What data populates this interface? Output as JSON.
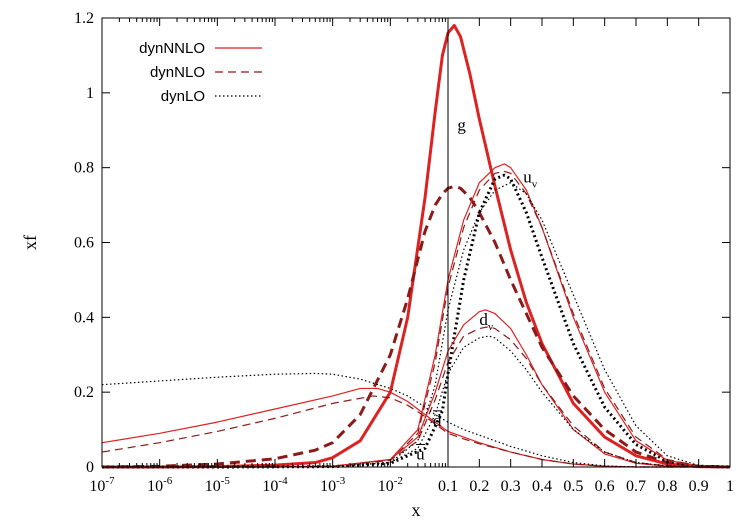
{
  "chart_data": {
    "type": "line",
    "title": "",
    "xlabel": "x",
    "ylabel": "xf",
    "xscale": "log below x=0.1, linear above x=0.1 (split axis)",
    "xlim": [
      1e-07,
      1
    ],
    "ylim": [
      0,
      1.2
    ],
    "grid": false,
    "legend_position": "top-left",
    "x_tick_labels": [
      {
        "v": 1e-07,
        "base": "10",
        "exp": "-7"
      },
      {
        "v": 1e-06,
        "base": "10",
        "exp": "-6"
      },
      {
        "v": 1e-05,
        "base": "10",
        "exp": "-5"
      },
      {
        "v": 0.0001,
        "base": "10",
        "exp": "-4"
      },
      {
        "v": 0.001,
        "base": "10",
        "exp": "-3"
      },
      {
        "v": 0.01,
        "base": "10",
        "exp": "-2"
      },
      {
        "v": 0.1,
        "base": "0.1",
        "exp": ""
      },
      {
        "v": 0.2,
        "base": "0.2",
        "exp": ""
      },
      {
        "v": 0.3,
        "base": "0.3",
        "exp": ""
      },
      {
        "v": 0.4,
        "base": "0.4",
        "exp": ""
      },
      {
        "v": 0.5,
        "base": "0.5",
        "exp": ""
      },
      {
        "v": 0.6,
        "base": "0.6",
        "exp": ""
      },
      {
        "v": 0.7,
        "base": "0.7",
        "exp": ""
      },
      {
        "v": 0.8,
        "base": "0.8",
        "exp": ""
      },
      {
        "v": 0.9,
        "base": "0.9",
        "exp": ""
      },
      {
        "v": 1,
        "base": "1",
        "exp": ""
      }
    ],
    "y_ticks": [
      0,
      0.2,
      0.4,
      0.6,
      0.8,
      1,
      1.2
    ],
    "y_tick_labels": [
      "0",
      "0.2",
      "0.4",
      "0.6",
      "0.8",
      "1",
      "1.2"
    ],
    "legend": [
      {
        "label": "dynNNLO",
        "style": "solid",
        "color": "#dd2222"
      },
      {
        "label": "dynNLO",
        "style": "dashed",
        "color": "#8b1a1a"
      },
      {
        "label": "dynLO",
        "style": "dotted",
        "color": "#000000"
      }
    ],
    "curve_labels": [
      {
        "main": "g",
        "sub": "",
        "bar": false,
        "x": 0.13,
        "y": 0.9
      },
      {
        "main": "u",
        "sub": "v",
        "bar": false,
        "x": 0.34,
        "y": 0.76
      },
      {
        "main": "d",
        "sub": "v",
        "bar": false,
        "x": 0.2,
        "y": 0.38
      },
      {
        "main": "d",
        "sub": "",
        "bar": true,
        "x": 0.055,
        "y": 0.11
      },
      {
        "main": "u",
        "sub": "",
        "bar": true,
        "x": 0.028,
        "y": 0.02
      }
    ],
    "series": [
      {
        "name": "g",
        "order": "NNLO",
        "style": "solid",
        "width": "thick",
        "color": "#dd2222",
        "x": [
          1e-07,
          1e-06,
          1e-05,
          0.0001,
          0.0005,
          0.001,
          0.003,
          0.01,
          0.02,
          0.04,
          0.06,
          0.08,
          0.1,
          0.12,
          0.14,
          0.17,
          0.2,
          0.25,
          0.3,
          0.35,
          0.4,
          0.5,
          0.6,
          0.7,
          0.8,
          0.9,
          1
        ],
        "y": [
          0,
          0,
          0.001,
          0.005,
          0.012,
          0.025,
          0.07,
          0.2,
          0.4,
          0.72,
          0.95,
          1.1,
          1.16,
          1.18,
          1.15,
          1.05,
          0.93,
          0.75,
          0.58,
          0.44,
          0.33,
          0.17,
          0.08,
          0.03,
          0.008,
          0.001,
          0
        ]
      },
      {
        "name": "g",
        "order": "NLO",
        "style": "dashed",
        "width": "thick",
        "color": "#8b1a1a",
        "x": [
          1e-07,
          1e-06,
          1e-05,
          0.0001,
          0.0005,
          0.001,
          0.003,
          0.01,
          0.02,
          0.04,
          0.06,
          0.08,
          0.1,
          0.12,
          0.14,
          0.17,
          0.2,
          0.25,
          0.3,
          0.35,
          0.4,
          0.5,
          0.6,
          0.7,
          0.8,
          0.9,
          1
        ],
        "y": [
          0,
          0.002,
          0.008,
          0.022,
          0.045,
          0.065,
          0.14,
          0.3,
          0.45,
          0.63,
          0.7,
          0.73,
          0.745,
          0.75,
          0.745,
          0.72,
          0.68,
          0.6,
          0.5,
          0.41,
          0.32,
          0.19,
          0.1,
          0.04,
          0.012,
          0.002,
          0
        ]
      },
      {
        "name": "g",
        "order": "LO",
        "style": "dotted",
        "width": "thick",
        "color": "#000000",
        "x": [
          1e-07,
          1e-05,
          0.001,
          0.01,
          0.04,
          0.08,
          0.1,
          0.15,
          0.2,
          0.25,
          0.28,
          0.3,
          0.35,
          0.4,
          0.5,
          0.6,
          0.7,
          0.8,
          0.9,
          1
        ],
        "y": [
          0,
          0,
          0.001,
          0.01,
          0.05,
          0.15,
          0.25,
          0.5,
          0.68,
          0.77,
          0.78,
          0.77,
          0.68,
          0.56,
          0.33,
          0.16,
          0.06,
          0.015,
          0.002,
          0
        ]
      },
      {
        "name": "u_v",
        "order": "NNLO",
        "style": "solid",
        "width": "thin",
        "color": "#dd2222",
        "x": [
          1e-07,
          0.0001,
          0.001,
          0.01,
          0.03,
          0.06,
          0.1,
          0.15,
          0.2,
          0.25,
          0.28,
          0.3,
          0.35,
          0.4,
          0.5,
          0.6,
          0.7,
          0.8,
          0.9,
          1
        ],
        "y": [
          0,
          0,
          0.002,
          0.02,
          0.1,
          0.3,
          0.5,
          0.66,
          0.76,
          0.8,
          0.81,
          0.8,
          0.74,
          0.64,
          0.4,
          0.2,
          0.07,
          0.018,
          0.002,
          0
        ]
      },
      {
        "name": "u_v",
        "order": "NLO",
        "style": "dashed",
        "width": "thin",
        "color": "#8b1a1a",
        "x": [
          1e-07,
          0.0001,
          0.001,
          0.01,
          0.03,
          0.06,
          0.1,
          0.15,
          0.2,
          0.25,
          0.28,
          0.3,
          0.35,
          0.4,
          0.5,
          0.6,
          0.7,
          0.8,
          0.9,
          1
        ],
        "y": [
          0,
          0,
          0.002,
          0.018,
          0.09,
          0.28,
          0.48,
          0.64,
          0.74,
          0.785,
          0.79,
          0.785,
          0.73,
          0.64,
          0.41,
          0.21,
          0.08,
          0.02,
          0.003,
          0
        ]
      },
      {
        "name": "u_v",
        "order": "LO",
        "style": "dotted",
        "width": "thin",
        "color": "#000000",
        "x": [
          1e-07,
          0.0001,
          0.001,
          0.01,
          0.03,
          0.06,
          0.1,
          0.15,
          0.2,
          0.25,
          0.3,
          0.35,
          0.4,
          0.5,
          0.6,
          0.7,
          0.8,
          0.9,
          1
        ],
        "y": [
          0,
          0,
          0.001,
          0.012,
          0.07,
          0.22,
          0.42,
          0.58,
          0.68,
          0.74,
          0.76,
          0.73,
          0.66,
          0.46,
          0.26,
          0.11,
          0.03,
          0.004,
          0
        ]
      },
      {
        "name": "d_v",
        "order": "NNLO",
        "style": "solid",
        "width": "thin",
        "color": "#dd2222",
        "x": [
          1e-07,
          0.0001,
          0.001,
          0.01,
          0.03,
          0.06,
          0.1,
          0.15,
          0.2,
          0.22,
          0.25,
          0.3,
          0.35,
          0.4,
          0.5,
          0.6,
          0.7,
          0.8,
          0.9,
          1
        ],
        "y": [
          0,
          0,
          0.002,
          0.02,
          0.08,
          0.2,
          0.31,
          0.38,
          0.415,
          0.42,
          0.41,
          0.37,
          0.3,
          0.22,
          0.1,
          0.035,
          0.01,
          0.002,
          0,
          0
        ]
      },
      {
        "name": "d_v",
        "order": "NLO",
        "style": "dashed",
        "width": "thin",
        "color": "#8b1a1a",
        "x": [
          1e-07,
          0.0001,
          0.001,
          0.01,
          0.03,
          0.06,
          0.1,
          0.15,
          0.2,
          0.23,
          0.25,
          0.3,
          0.35,
          0.4,
          0.5,
          0.6,
          0.7,
          0.8,
          0.9,
          1
        ],
        "y": [
          0,
          0,
          0.002,
          0.018,
          0.07,
          0.18,
          0.28,
          0.35,
          0.37,
          0.375,
          0.37,
          0.34,
          0.29,
          0.22,
          0.11,
          0.04,
          0.012,
          0.003,
          0,
          0
        ]
      },
      {
        "name": "d_v",
        "order": "LO",
        "style": "dotted",
        "width": "thin",
        "color": "#000000",
        "x": [
          1e-07,
          0.0001,
          0.001,
          0.01,
          0.03,
          0.06,
          0.1,
          0.15,
          0.2,
          0.23,
          0.25,
          0.3,
          0.35,
          0.4,
          0.5,
          0.6,
          0.7,
          0.8,
          0.9,
          1
        ],
        "y": [
          0,
          0,
          0.001,
          0.012,
          0.05,
          0.14,
          0.25,
          0.32,
          0.345,
          0.35,
          0.345,
          0.31,
          0.26,
          0.2,
          0.1,
          0.04,
          0.012,
          0.003,
          0,
          0
        ]
      },
      {
        "name": "sea (ubar, dbar)",
        "order": "NNLO",
        "style": "solid",
        "width": "thin",
        "color": "#dd2222",
        "x": [
          1e-07,
          1e-06,
          1e-05,
          0.0001,
          0.001,
          0.003,
          0.006,
          0.01,
          0.02,
          0.04,
          0.06,
          0.1,
          0.15,
          0.2,
          0.3,
          0.4,
          0.5,
          0.6,
          0.7,
          0.8,
          0.9,
          1
        ],
        "y": [
          0.065,
          0.09,
          0.12,
          0.155,
          0.19,
          0.21,
          0.21,
          0.2,
          0.175,
          0.14,
          0.12,
          0.095,
          0.08,
          0.065,
          0.04,
          0.02,
          0.008,
          0.002,
          0,
          0,
          0,
          0
        ]
      },
      {
        "name": "sea (ubar, dbar)",
        "order": "NLO",
        "style": "dashed",
        "width": "thin",
        "color": "#8b1a1a",
        "x": [
          1e-07,
          1e-06,
          1e-05,
          0.0001,
          0.001,
          0.005,
          0.01,
          0.02,
          0.04,
          0.06,
          0.1,
          0.15,
          0.2,
          0.3,
          0.4,
          0.5,
          0.6,
          0.7,
          0.8,
          0.9,
          1
        ],
        "y": [
          0.04,
          0.065,
          0.095,
          0.13,
          0.17,
          0.19,
          0.185,
          0.165,
          0.135,
          0.115,
          0.09,
          0.075,
          0.062,
          0.04,
          0.02,
          0.008,
          0.002,
          0,
          0,
          0,
          0
        ]
      },
      {
        "name": "sea (ubar, dbar)",
        "order": "LO",
        "style": "dotted",
        "width": "thin",
        "color": "#000000",
        "x": [
          1e-07,
          1e-06,
          1e-05,
          0.0001,
          0.0005,
          0.001,
          0.003,
          0.01,
          0.02,
          0.04,
          0.06,
          0.1,
          0.15,
          0.2,
          0.3,
          0.4,
          0.5,
          0.6,
          0.7,
          0.8,
          0.9,
          1
        ],
        "y": [
          0.22,
          0.23,
          0.24,
          0.248,
          0.25,
          0.248,
          0.235,
          0.21,
          0.19,
          0.16,
          0.14,
          0.12,
          0.1,
          0.085,
          0.055,
          0.03,
          0.012,
          0.003,
          0,
          0,
          0,
          0
        ]
      }
    ]
  }
}
